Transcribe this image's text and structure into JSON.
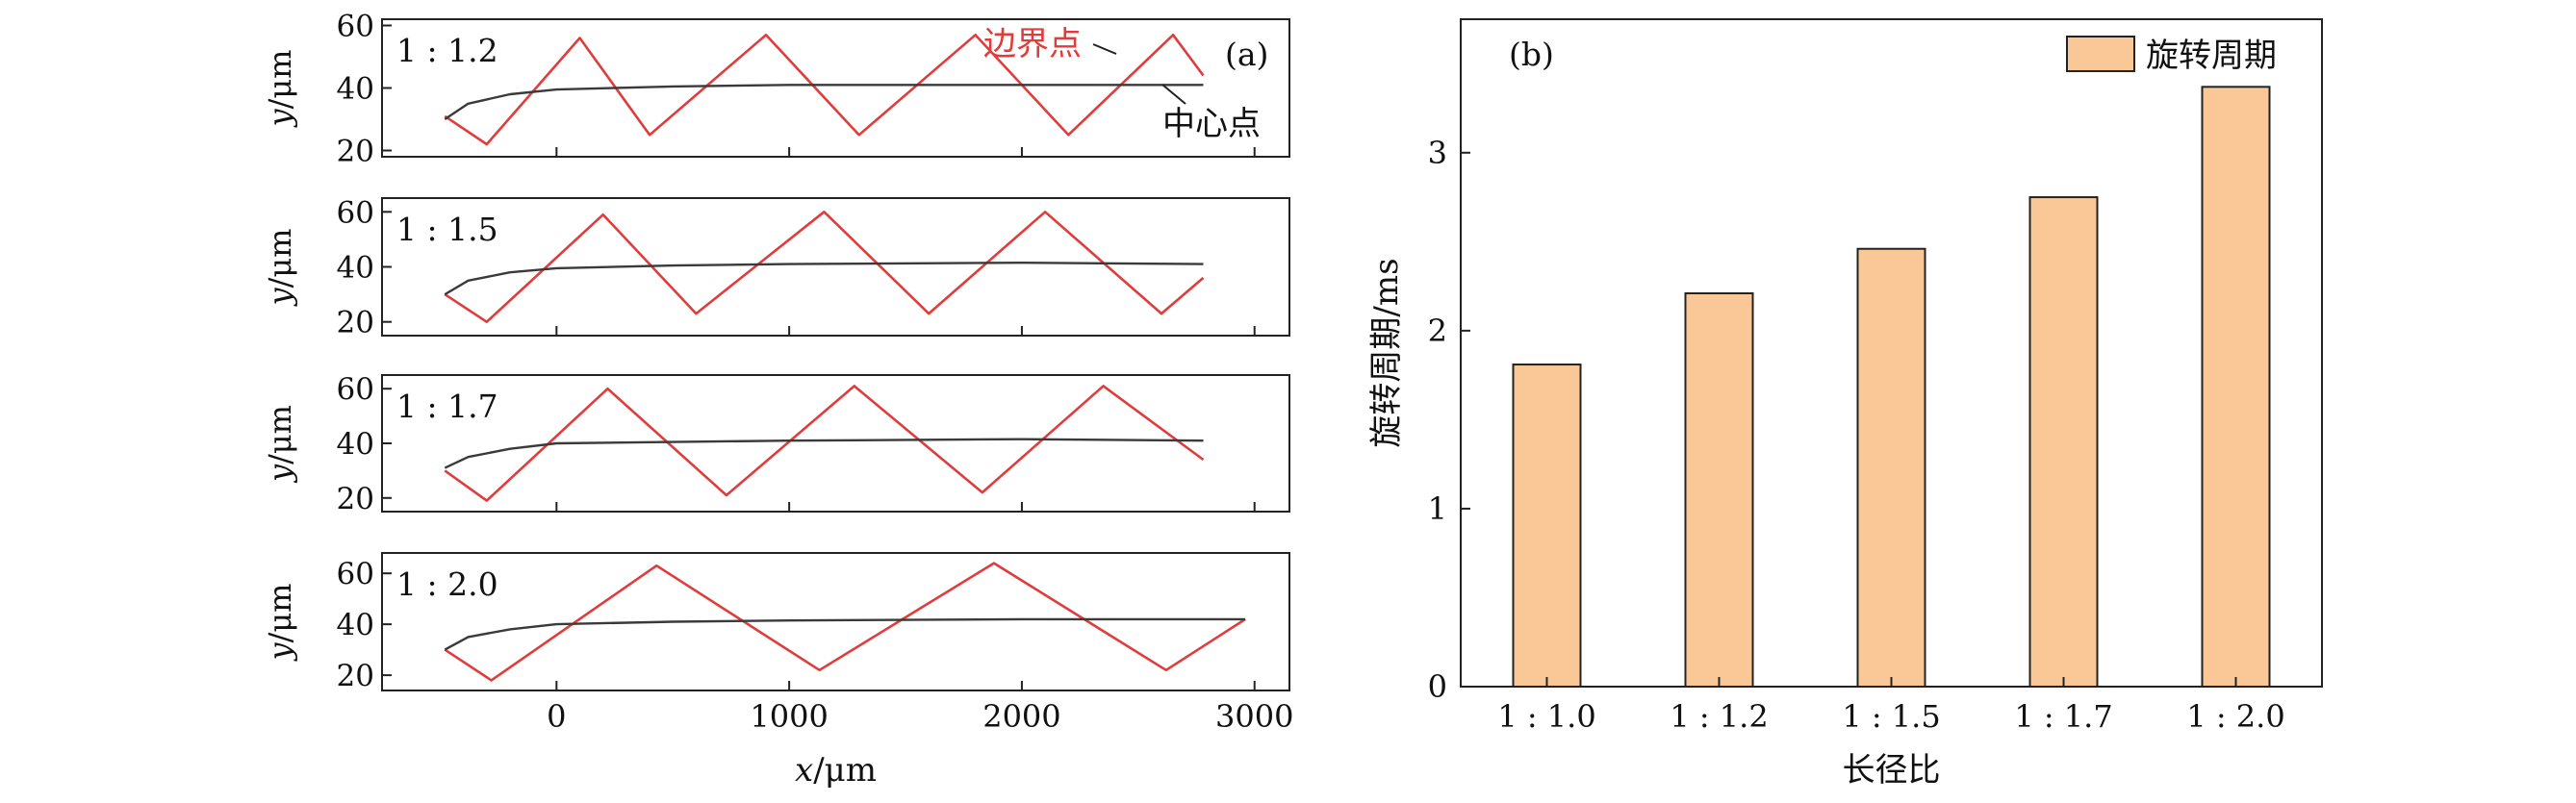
{
  "chart_data": [
    {
      "panel_label": "(a)",
      "type": "line",
      "xlabel_italic": "x",
      "xlabel_unit": "/μm",
      "ylabel_italic": "y",
      "ylabel_unit": "/μm",
      "xlim": [
        -750,
        3150
      ],
      "xticks": [
        0,
        1000,
        2000,
        3000
      ],
      "annotations": {
        "boundary": "边界点",
        "center": "中心点"
      },
      "colors": {
        "boundary": "#e03c3c",
        "center": "#3a3a3a"
      },
      "subplots": [
        {
          "label": "1 : 1.2",
          "ylim": [
            18,
            62
          ],
          "yticks": [
            20,
            40,
            60
          ],
          "series": [
            {
              "key": "boundary",
              "x": [
                -480,
                -300,
                100,
                400,
                900,
                1300,
                1800,
                2200,
                2650,
                2780
              ],
              "y": [
                31,
                22,
                56,
                25,
                57,
                25,
                57,
                25,
                57,
                44
              ]
            },
            {
              "key": "center",
              "x": [
                -480,
                -380,
                -200,
                0,
                500,
                1000,
                2000,
                2780
              ],
              "y": [
                30,
                35,
                38,
                39.5,
                40.5,
                41,
                41,
                41
              ]
            }
          ]
        },
        {
          "label": "1 : 1.5",
          "ylim": [
            15,
            65
          ],
          "yticks": [
            20,
            40,
            60
          ],
          "series": [
            {
              "key": "boundary",
              "x": [
                -480,
                -300,
                200,
                600,
                1150,
                1600,
                2100,
                2600,
                2780
              ],
              "y": [
                30,
                20,
                59,
                23,
                60,
                23,
                60,
                23,
                36
              ]
            },
            {
              "key": "center",
              "x": [
                -480,
                -380,
                -200,
                0,
                500,
                1000,
                2000,
                2780
              ],
              "y": [
                30,
                35,
                38,
                39.5,
                40.5,
                41,
                41.5,
                41
              ]
            }
          ]
        },
        {
          "label": "1 : 1.7",
          "ylim": [
            15,
            65
          ],
          "yticks": [
            20,
            40,
            60
          ],
          "series": [
            {
              "key": "boundary",
              "x": [
                -480,
                -300,
                220,
                730,
                1280,
                1830,
                2350,
                2780
              ],
              "y": [
                30,
                19,
                60,
                21,
                61,
                22,
                61,
                34
              ]
            },
            {
              "key": "center",
              "x": [
                -480,
                -380,
                -200,
                0,
                500,
                1000,
                2000,
                2780
              ],
              "y": [
                31,
                35,
                38,
                40,
                40.5,
                41,
                41.5,
                41
              ]
            }
          ]
        },
        {
          "label": "1 : 2.0",
          "ylim": [
            14,
            68
          ],
          "yticks": [
            20,
            40,
            60
          ],
          "series": [
            {
              "key": "boundary",
              "x": [
                -480,
                -280,
                430,
                1130,
                1880,
                2620,
                2960
              ],
              "y": [
                30,
                18,
                63,
                22,
                64,
                22,
                42
              ]
            },
            {
              "key": "center",
              "x": [
                -480,
                -380,
                -200,
                0,
                500,
                1000,
                2000,
                2960
              ],
              "y": [
                30,
                35,
                38,
                40,
                41,
                41.5,
                42,
                42
              ]
            }
          ]
        }
      ]
    },
    {
      "panel_label": "(b)",
      "type": "bar",
      "categories": [
        "1 : 1.0",
        "1 : 1.2",
        "1 : 1.5",
        "1 : 1.7",
        "1 : 2.0"
      ],
      "values": [
        1.81,
        2.21,
        2.46,
        2.75,
        3.37
      ],
      "series_name": "旋转周期",
      "ylabel": "旋转周期/ms",
      "xlabel": "长径比",
      "ylim": [
        0,
        3.75
      ],
      "yticks": [
        0,
        1,
        2,
        3
      ],
      "bar_color": "#f9c896",
      "legend_position": "top-right"
    }
  ]
}
